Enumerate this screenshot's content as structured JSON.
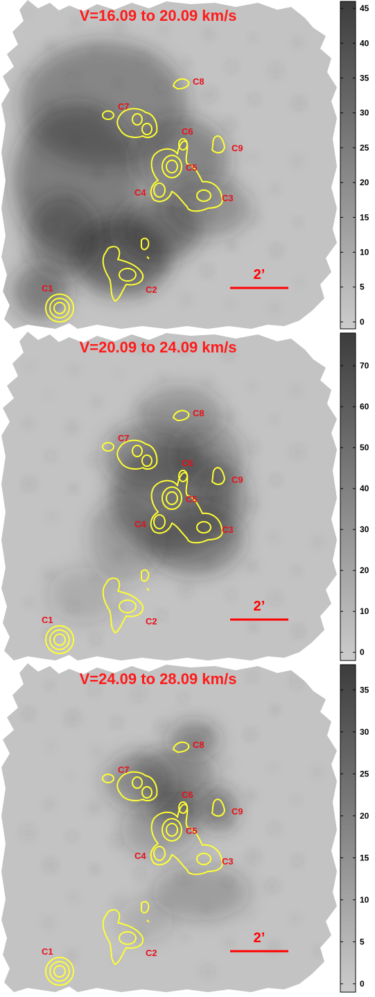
{
  "panels": [
    {
      "title": "V=16.09 to 20.09 km/s",
      "colorbar_ticks": [
        "45",
        "40",
        "35",
        "30",
        "25",
        "20",
        "15",
        "10",
        "5",
        "0"
      ],
      "colorbar_range": [
        -1,
        46
      ],
      "emission_strength": 0.55,
      "emission_focus": "lower-left"
    },
    {
      "title": "V=20.09 to 24.09 km/s",
      "colorbar_ticks": [
        "70",
        "60",
        "50",
        "40",
        "30",
        "20",
        "10",
        "0"
      ],
      "colorbar_range": [
        -2,
        78
      ],
      "emission_strength": 0.5,
      "emission_focus": "center"
    },
    {
      "title": "V=24.09 to 28.09 km/s",
      "colorbar_ticks": [
        "35",
        "30",
        "25",
        "20",
        "15",
        "10",
        "5",
        "0"
      ],
      "colorbar_range": [
        -1,
        38
      ],
      "emission_strength": 0.45,
      "emission_focus": "center"
    }
  ],
  "clump_labels": [
    "C1",
    "C2",
    "C3",
    "C4",
    "C5",
    "C6",
    "C7",
    "C8",
    "C9"
  ],
  "scale_bar_label": "2’",
  "colors": {
    "title": "#ff1a1a",
    "labels": "#e8101a",
    "contours": "#ffff33",
    "scale_bar": "#ff0000",
    "background_map": "#c3c3c3",
    "colorbar_high": "#3c3c3c",
    "colorbar_low": "#cccccc"
  }
}
